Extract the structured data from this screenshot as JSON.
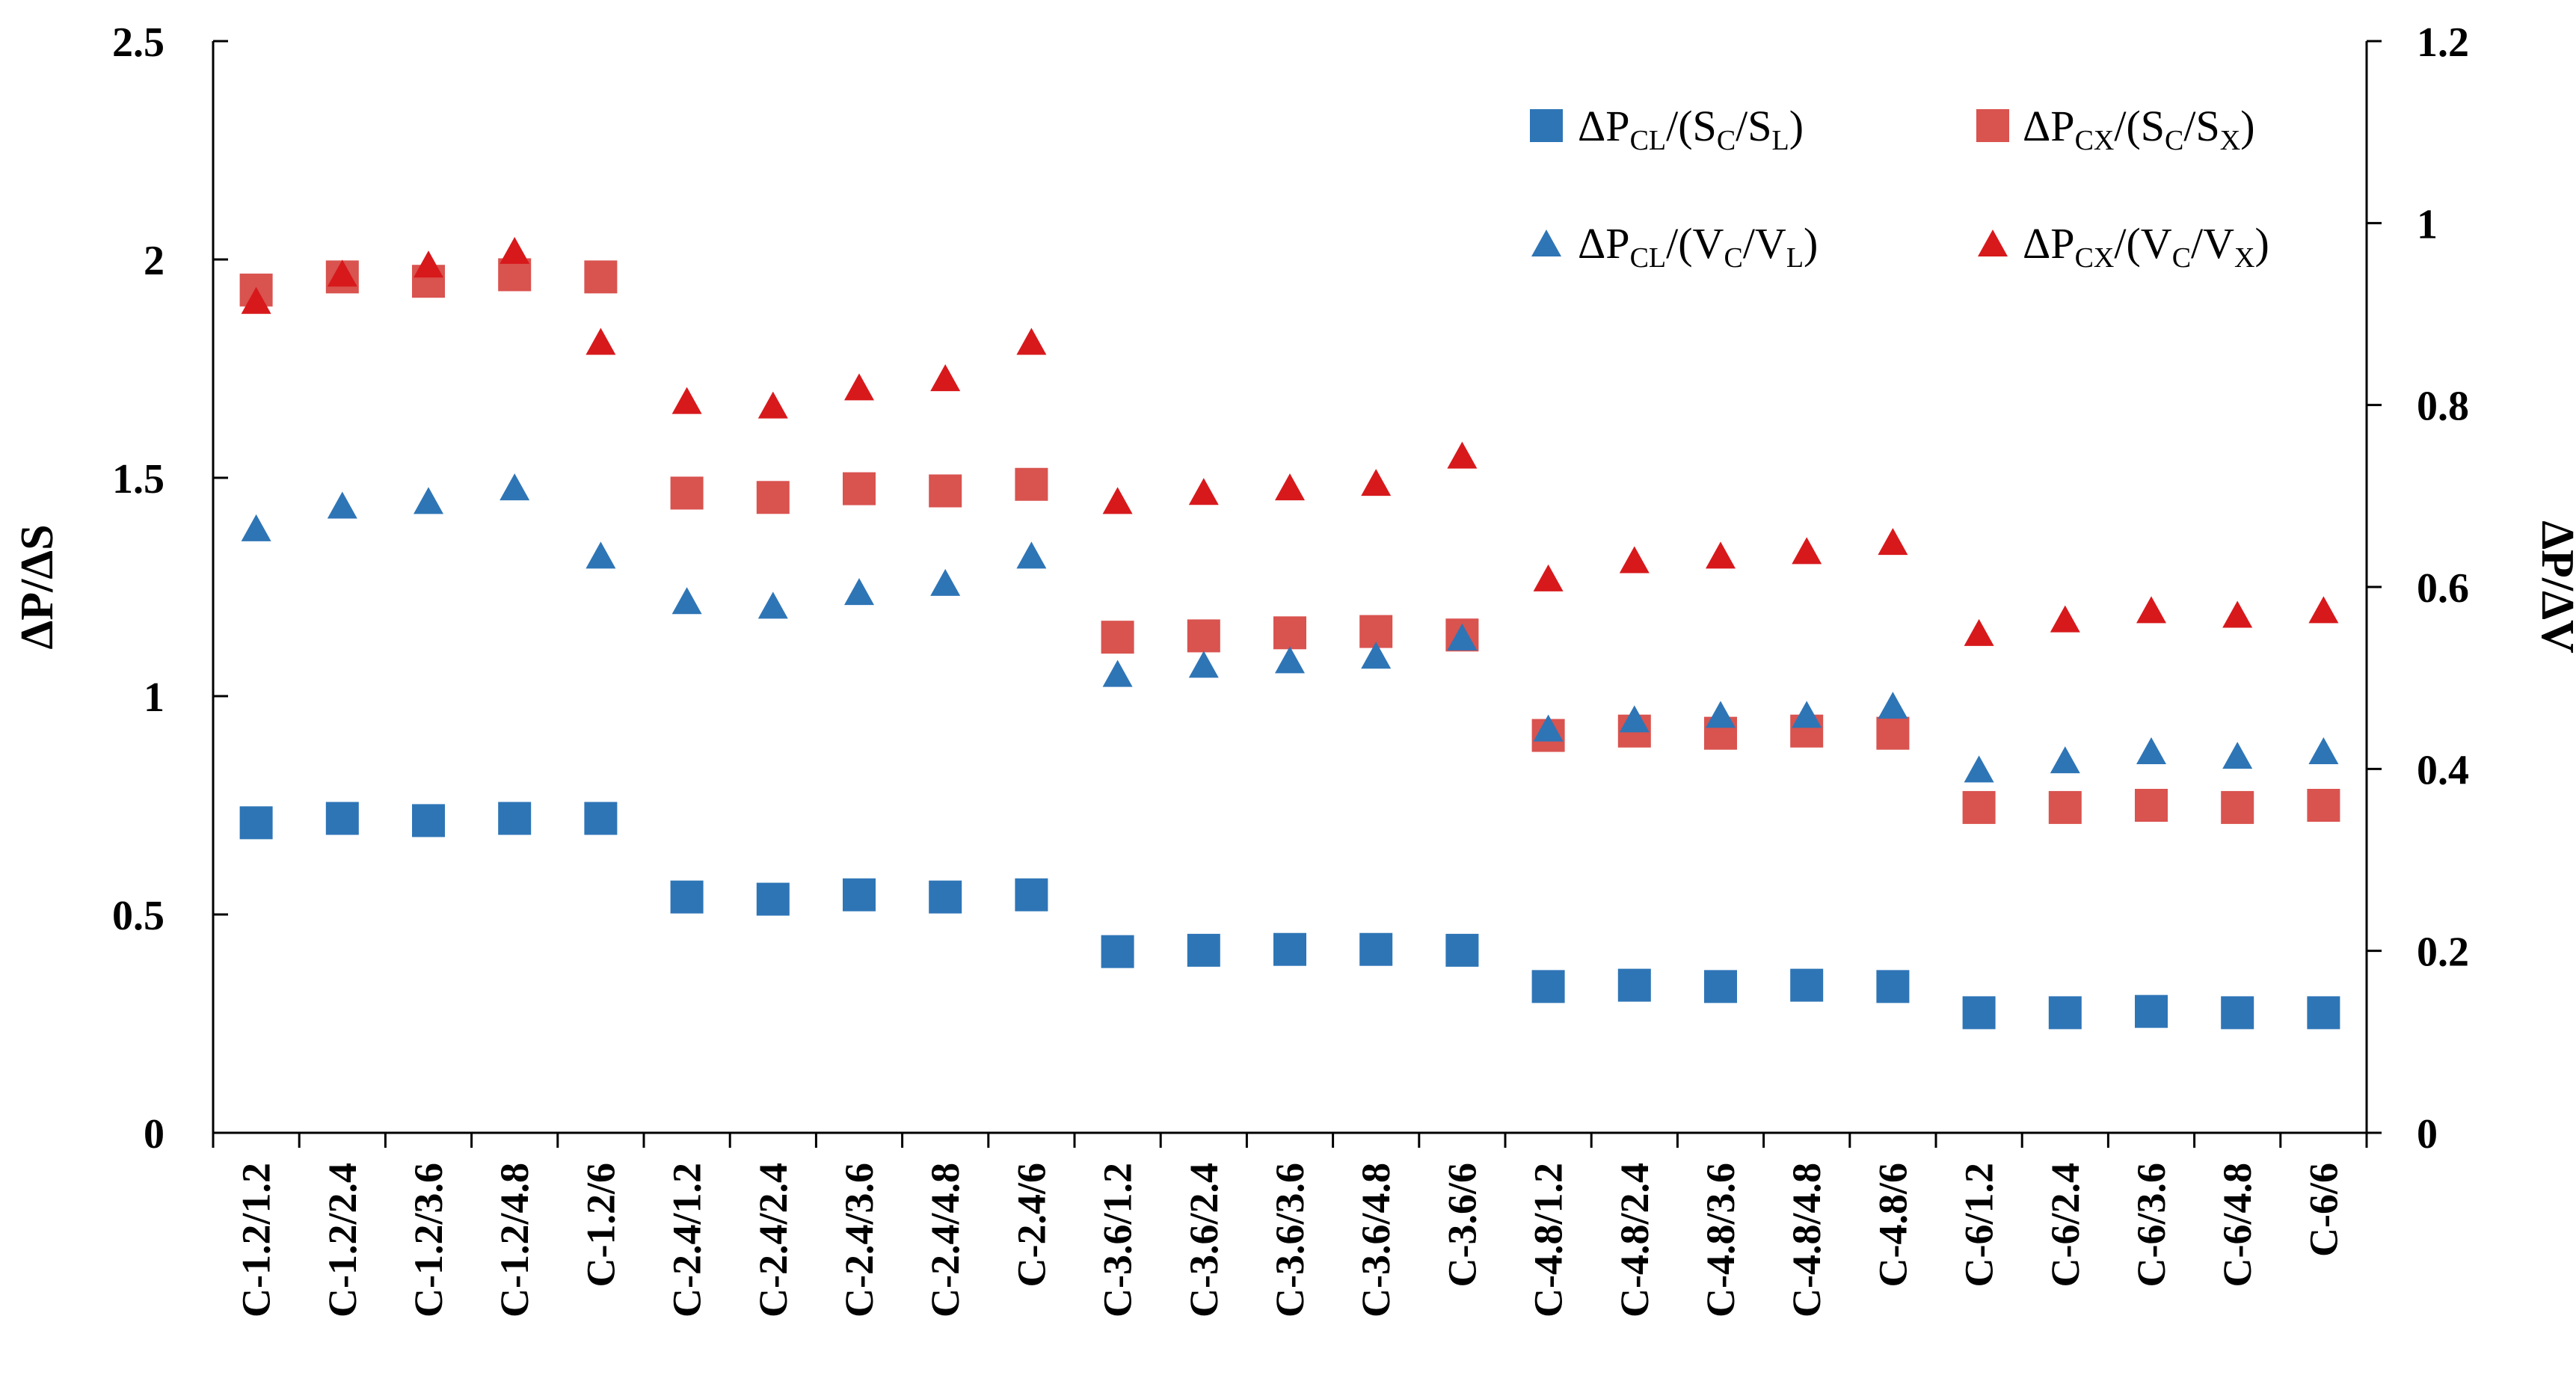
{
  "chart_data": {
    "type": "scatter",
    "categories": [
      "C-1.2/1.2",
      "C-1.2/2.4",
      "C-1.2/3.6",
      "C-1.2/4.8",
      "C-1.2/6",
      "C-2.4/1.2",
      "C-2.4/2.4",
      "C-2.4/3.6",
      "C-2.4/4.8",
      "C-2.4/6",
      "C-3.6/1.2",
      "C-3.6/2.4",
      "C-3.6/3.6",
      "C-3.6/4.8",
      "C-3.6/6",
      "C-4.8/1.2",
      "C-4.8/2.4",
      "C-4.8/3.6",
      "C-4.8/4.8",
      "C-4.8/6",
      "C-6/1.2",
      "C-6/2.4",
      "C-6/3.6",
      "C-6/4.8",
      "C-6/6"
    ],
    "ylabel": "ΔP/ΔS",
    "y2label": "ΔP/ΔV",
    "ylim": [
      0,
      2.5
    ],
    "y2lim": [
      0,
      1.2
    ],
    "yticks": [
      "0",
      "0.5",
      "1",
      "1.5",
      "2",
      "2.5"
    ],
    "y2ticks": [
      "0",
      "0.2",
      "0.4",
      "0.6",
      "0.8",
      "1",
      "1.2"
    ],
    "legend_placement": "top-right",
    "series": [
      {
        "name": "ΔP_CL/(S_C/S_L)",
        "legend": {
          "main": "ΔP",
          "sub1": "CL",
          "mid1": "/(S",
          "sub2": "C",
          "mid2": "/S",
          "sub3": "L",
          "end": ")"
        },
        "marker": "square",
        "axis": "left",
        "color": "#2e75b6",
        "values": [
          0.71,
          0.72,
          0.715,
          0.72,
          0.72,
          0.54,
          0.535,
          0.545,
          0.54,
          0.545,
          0.415,
          0.418,
          0.42,
          0.42,
          0.418,
          0.335,
          0.338,
          0.335,
          0.338,
          0.335,
          0.275,
          0.275,
          0.278,
          0.275,
          0.275
        ]
      },
      {
        "name": "ΔP_CX/(S_C/S_X)",
        "legend": {
          "main": "ΔP",
          "sub1": "CX",
          "mid1": "/(S",
          "sub2": "C",
          "mid2": "/S",
          "sub3": "X",
          "end": ")"
        },
        "marker": "square",
        "axis": "left",
        "color": "#d9534f",
        "values": [
          1.93,
          1.96,
          1.95,
          1.965,
          1.96,
          1.465,
          1.455,
          1.475,
          1.47,
          1.485,
          1.135,
          1.138,
          1.145,
          1.148,
          1.14,
          0.91,
          0.92,
          0.915,
          0.92,
          0.915,
          0.745,
          0.745,
          0.75,
          0.745,
          0.75
        ]
      },
      {
        "name": "ΔP_CL/(V_C/V_L)",
        "legend": {
          "main": "ΔP",
          "sub1": "CL",
          "mid1": "/(V",
          "sub2": "C",
          "mid2": "/V",
          "sub3": "L",
          "end": ")"
        },
        "marker": "triangle",
        "axis": "right",
        "color": "#2e75b6",
        "values": [
          0.665,
          0.69,
          0.695,
          0.71,
          0.635,
          0.585,
          0.58,
          0.595,
          0.605,
          0.635,
          0.505,
          0.515,
          0.52,
          0.525,
          0.545,
          0.445,
          0.455,
          0.46,
          0.46,
          0.47,
          0.4,
          0.41,
          0.42,
          0.415,
          0.42
        ]
      },
      {
        "name": "ΔP_CX/(V_C/V_X)",
        "legend": {
          "main": "ΔP",
          "sub1": "CX",
          "mid1": "/(V",
          "sub2": "C",
          "mid2": "/V",
          "sub3": "X",
          "end": ")"
        },
        "marker": "triangle",
        "axis": "right",
        "color": "#d7191c",
        "values": [
          0.915,
          0.945,
          0.955,
          0.97,
          0.87,
          0.805,
          0.8,
          0.82,
          0.83,
          0.87,
          0.695,
          0.705,
          0.71,
          0.715,
          0.745,
          0.61,
          0.63,
          0.635,
          0.64,
          0.65,
          0.55,
          0.565,
          0.575,
          0.57,
          0.575
        ]
      }
    ]
  }
}
